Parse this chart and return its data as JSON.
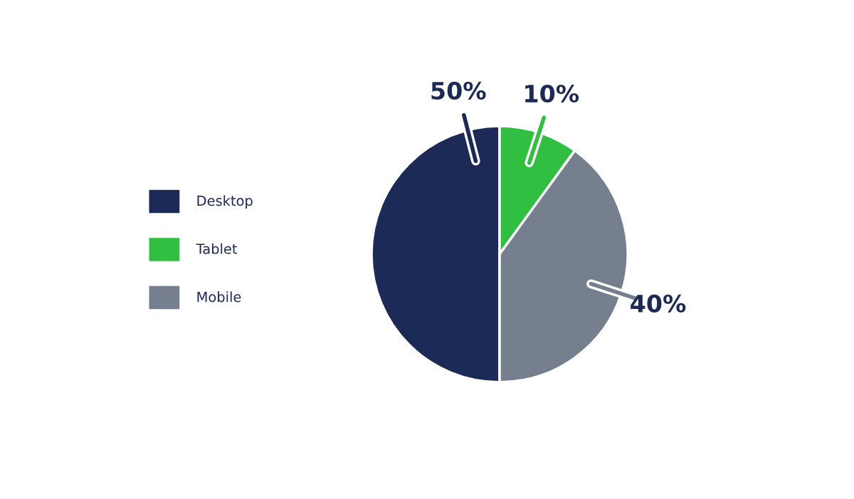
{
  "chart_data": {
    "type": "pie",
    "categories": [
      "Desktop",
      "Tablet",
      "Mobile"
    ],
    "values": [
      50,
      10,
      40
    ],
    "colors": [
      "#1b2a56",
      "#31bf41",
      "#767f8d"
    ],
    "value_labels": [
      "50%",
      "10%",
      "40%"
    ],
    "legend": "left"
  }
}
